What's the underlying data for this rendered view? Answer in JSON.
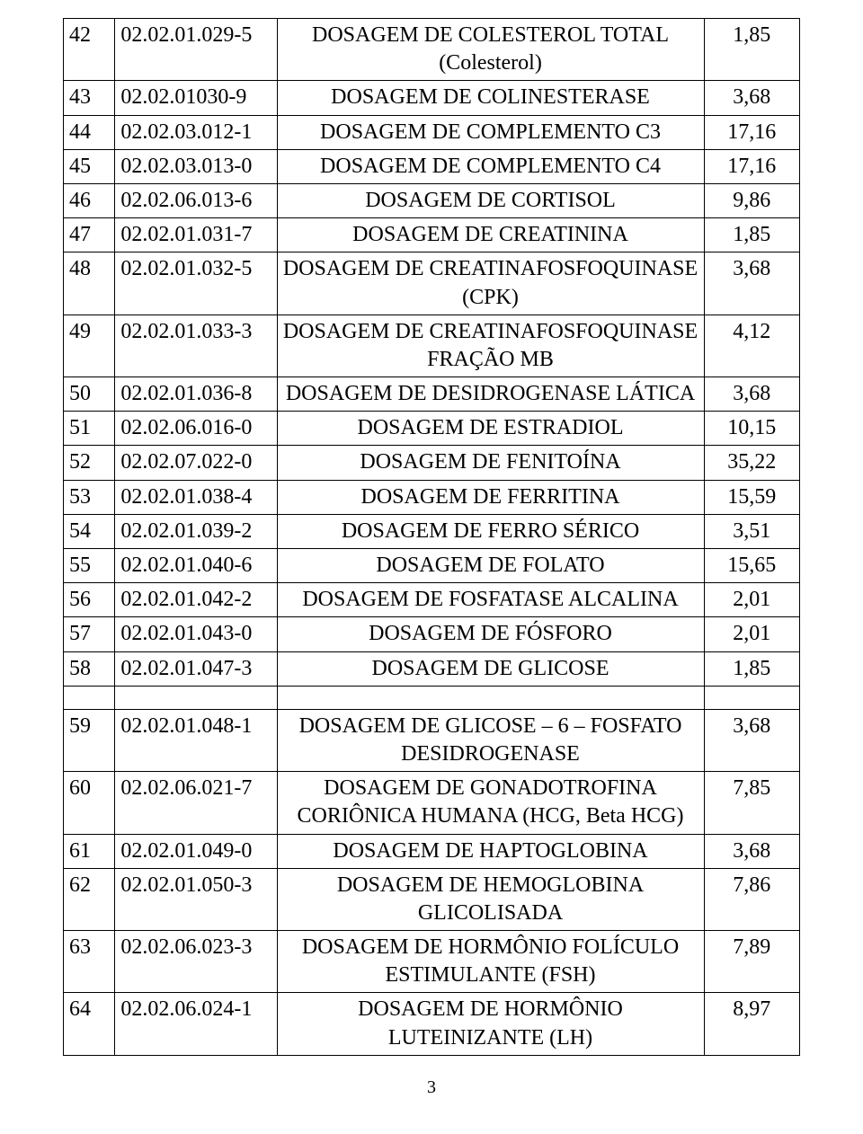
{
  "rows": [
    {
      "n": "42",
      "code": "02.02.01.029-5",
      "desc": "DOSAGEM DE COLESTEROL TOTAL (Colesterol)",
      "val": "1,85"
    },
    {
      "n": "43",
      "code": "02.02.01030-9",
      "desc": "DOSAGEM DE COLINESTERASE",
      "val": "3,68"
    },
    {
      "n": "44",
      "code": "02.02.03.012-1",
      "desc": "DOSAGEM DE COMPLEMENTO C3",
      "val": "17,16"
    },
    {
      "n": "45",
      "code": "02.02.03.013-0",
      "desc": "DOSAGEM DE COMPLEMENTO C4",
      "val": "17,16"
    },
    {
      "n": "46",
      "code": "02.02.06.013-6",
      "desc": "DOSAGEM DE CORTISOL",
      "val": "9,86"
    },
    {
      "n": "47",
      "code": "02.02.01.031-7",
      "desc": "DOSAGEM DE CREATININA",
      "val": "1,85"
    },
    {
      "n": "48",
      "code": "02.02.01.032-5",
      "desc": "DOSAGEM DE CREATINAFOSFOQUINASE (CPK)",
      "val": "3,68"
    },
    {
      "n": "49",
      "code": "02.02.01.033-3",
      "desc": "DOSAGEM DE CREATINAFOSFOQUINASE FRAÇÃO MB",
      "val": "4,12"
    },
    {
      "n": "50",
      "code": "02.02.01.036-8",
      "desc": "DOSAGEM DE DESIDROGENASE LÁTICA",
      "val": "3,68"
    },
    {
      "n": "51",
      "code": "02.02.06.016-0",
      "desc": "DOSAGEM DE ESTRADIOL",
      "val": "10,15"
    },
    {
      "n": "52",
      "code": "02.02.07.022-0",
      "desc": "DOSAGEM DE FENITOÍNA",
      "val": "35,22"
    },
    {
      "n": "53",
      "code": "02.02.01.038-4",
      "desc": "DOSAGEM DE FERRITINA",
      "val": "15,59"
    },
    {
      "n": "54",
      "code": "02.02.01.039-2",
      "desc": "DOSAGEM DE FERRO SÉRICO",
      "val": "3,51"
    },
    {
      "n": "55",
      "code": "02.02.01.040-6",
      "desc": "DOSAGEM DE FOLATO",
      "val": "15,65"
    },
    {
      "n": "56",
      "code": "02.02.01.042-2",
      "desc": "DOSAGEM DE FOSFATASE ALCALINA",
      "val": "2,01"
    },
    {
      "n": "57",
      "code": "02.02.01.043-0",
      "desc": "DOSAGEM DE FÓSFORO",
      "val": "2,01"
    },
    {
      "n": "58",
      "code": "02.02.01.047-3",
      "desc": "DOSAGEM DE GLICOSE",
      "val": "1,85"
    }
  ],
  "rows2": [
    {
      "n": "59",
      "code": "02.02.01.048-1",
      "desc": "DOSAGEM DE GLICOSE – 6 – FOSFATO DESIDROGENASE",
      "val": "3,68"
    },
    {
      "n": "60",
      "code": "02.02.06.021-7",
      "desc": "DOSAGEM DE GONADOTROFINA CORIÔNICA HUMANA (HCG, Beta HCG)",
      "val": "7,85"
    },
    {
      "n": "61",
      "code": "02.02.01.049-0",
      "desc": "DOSAGEM DE HAPTOGLOBINA",
      "val": "3,68"
    },
    {
      "n": "62",
      "code": "02.02.01.050-3",
      "desc": "DOSAGEM DE HEMOGLOBINA GLICOLISADA",
      "val": "7,86"
    },
    {
      "n": "63",
      "code": "02.02.06.023-3",
      "desc": "DOSAGEM DE HORMÔNIO FOLÍCULO ESTIMULANTE (FSH)",
      "val": "7,89"
    },
    {
      "n": "64",
      "code": "02.02.06.024-1",
      "desc": "DOSAGEM DE HORMÔNIO LUTEINIZANTE (LH)",
      "val": "8,97"
    }
  ],
  "page_number": "3"
}
